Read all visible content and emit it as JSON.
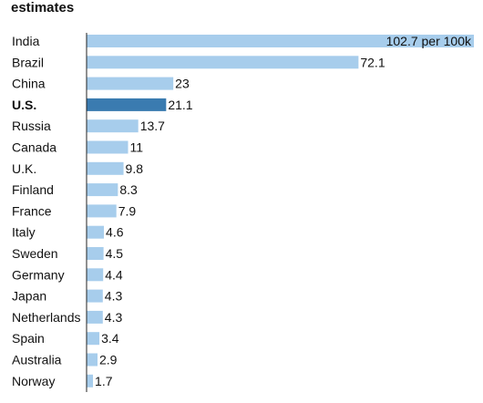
{
  "chart_data": {
    "type": "bar",
    "orientation": "horizontal",
    "title": "estimates",
    "categories": [
      "India",
      "Brazil",
      "China",
      "U.S.",
      "Russia",
      "Canada",
      "U.K.",
      "Finland",
      "France",
      "Italy",
      "Sweden",
      "Germany",
      "Japan",
      "Netherlands",
      "Spain",
      "Australia",
      "Norway"
    ],
    "values": [
      102.7,
      72.1,
      23,
      21.1,
      13.7,
      11,
      9.8,
      8.3,
      7.9,
      4.6,
      4.5,
      4.4,
      4.3,
      4.3,
      3.4,
      2.9,
      1.7
    ],
    "value_labels": [
      "102.7 per 100k",
      "72.1",
      "23",
      "21.1",
      "13.7",
      "11",
      "9.8",
      "8.3",
      "7.9",
      "4.6",
      "4.5",
      "4.4",
      "4.3",
      "4.3",
      "3.4",
      "2.9",
      "1.7"
    ],
    "highlight_category": "U.S.",
    "xlim": [
      0,
      102.7
    ],
    "grid": false,
    "colors": {
      "bar": "#a7cdec",
      "highlight_bar": "#3a7bb0",
      "axis": "#222222"
    }
  }
}
